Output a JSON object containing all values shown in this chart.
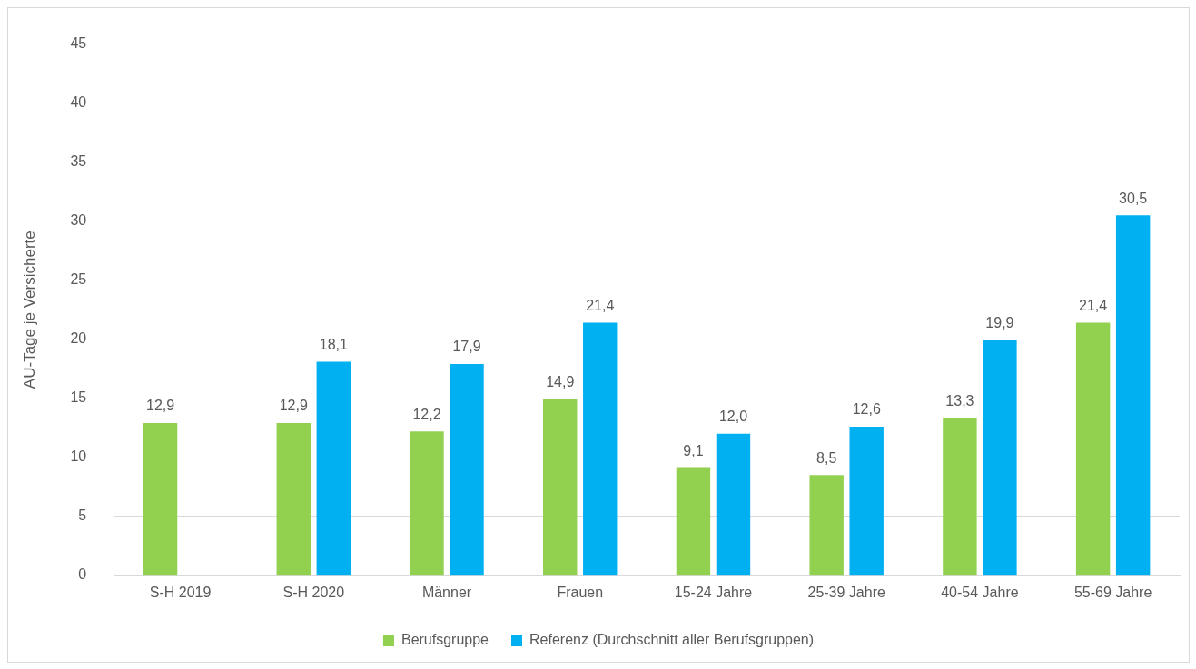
{
  "chart_data": {
    "type": "bar",
    "ylabel": "AU-Tage je Versicherte",
    "categories": [
      "S-H 2019",
      "S-H 2020",
      "Männer",
      "Frauen",
      "15-24 Jahre",
      "25-39 Jahre",
      "40-54 Jahre",
      "55-69 Jahre"
    ],
    "series": [
      {
        "name": "Berufsgruppe",
        "color": "#92d050",
        "values": [
          12.9,
          12.9,
          12.2,
          14.9,
          9.1,
          8.5,
          13.3,
          21.4
        ],
        "value_labels": [
          "12,9",
          "12,9",
          "12,2",
          "14,9",
          "9,1",
          "8,5",
          "13,3",
          "21,4"
        ]
      },
      {
        "name": "Referenz (Durchschnitt aller Berufsgruppen)",
        "color": "#00b0f0",
        "values": [
          null,
          18.1,
          17.9,
          21.4,
          12.0,
          12.6,
          19.9,
          30.5
        ],
        "value_labels": [
          null,
          "18,1",
          "17,9",
          "21,4",
          "12,0",
          "12,6",
          "19,9",
          "30,5"
        ]
      }
    ],
    "ylim": [
      0,
      45
    ],
    "yticks": [
      0,
      5,
      10,
      15,
      20,
      25,
      30,
      35,
      40,
      45
    ],
    "grid": "y",
    "legend": "bottom"
  }
}
